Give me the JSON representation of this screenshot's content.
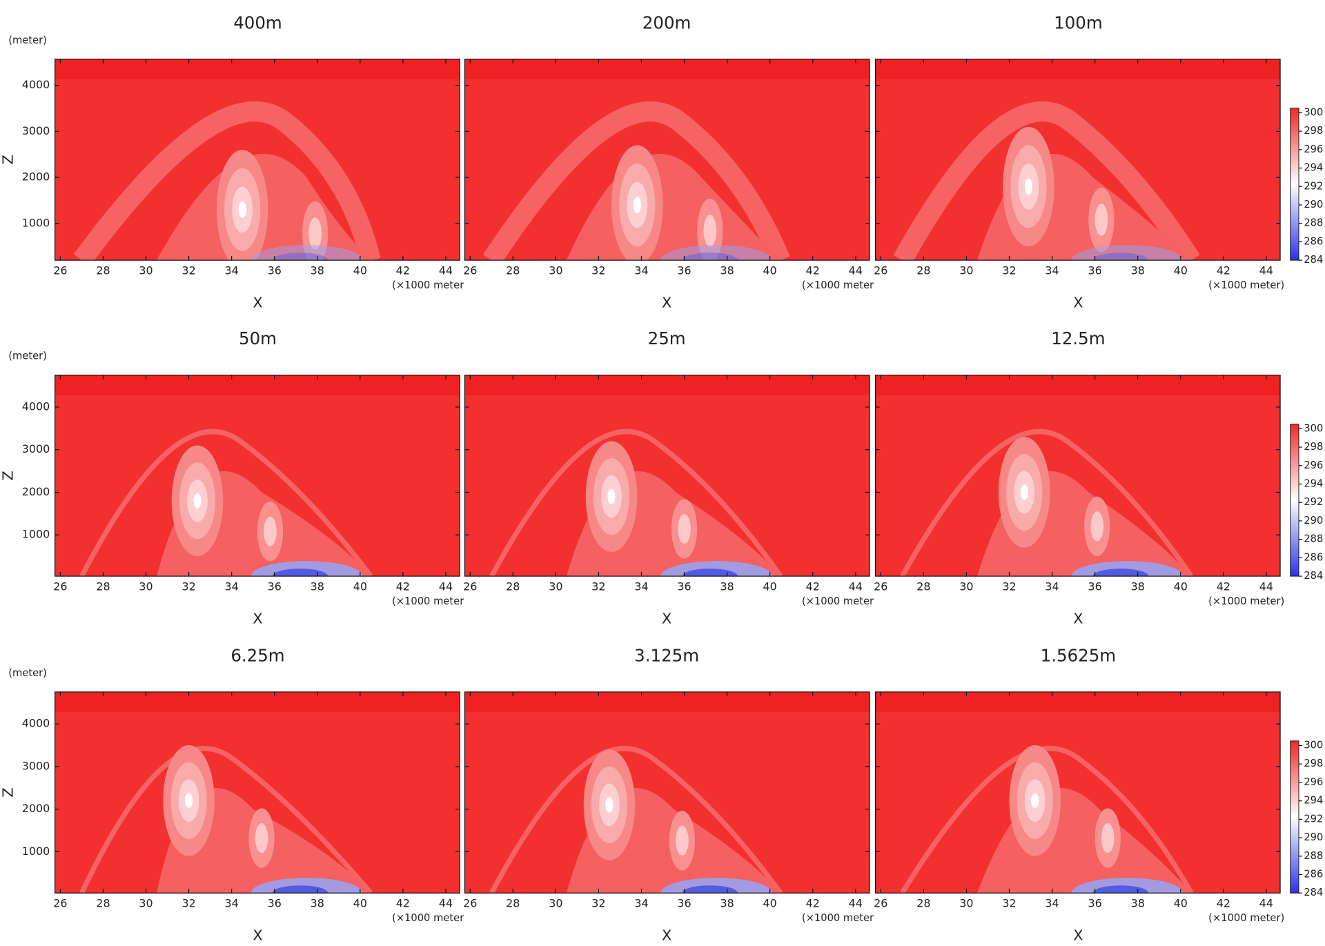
{
  "chart_data": [
    {
      "type": "contour",
      "title": "400m",
      "xlim": [
        25.75,
        44.65
      ],
      "ylim": [
        200,
        4570
      ],
      "xticks": [
        26,
        28,
        30,
        32,
        34,
        36,
        38,
        40,
        42,
        44
      ],
      "yticks": [
        1000,
        2000,
        3000,
        4000
      ],
      "xlabel": "X",
      "xunit": "(×1000 meter",
      "ylabel": "Z",
      "yunit": "(meter)"
    },
    {
      "type": "contour",
      "title": "200m",
      "xlim": [
        25.75,
        44.65
      ],
      "ylim": [
        200,
        4570
      ],
      "xticks": [
        26,
        28,
        30,
        32,
        34,
        36,
        38,
        40,
        42,
        44
      ],
      "yticks": [
        1000,
        2000,
        3000,
        4000
      ],
      "xlabel": "X",
      "xunit": "(×1000 meter"
    },
    {
      "type": "contour",
      "title": "100m",
      "xlim": [
        25.75,
        44.65
      ],
      "ylim": [
        200,
        4570
      ],
      "xticks": [
        26,
        28,
        30,
        32,
        34,
        36,
        38,
        40,
        42,
        44
      ],
      "yticks": [
        1000,
        2000,
        3000,
        4000
      ],
      "xlabel": "X",
      "xunit": "(×1000 meter)",
      "colorbar": {
        "lim": [
          284,
          300.5
        ],
        "ticks": [
          284,
          286,
          288,
          290,
          292,
          294,
          296,
          298,
          300
        ],
        "colors": [
          "#2a32e6",
          "#ffffff",
          "#f02828"
        ]
      }
    },
    {
      "type": "contour",
      "title": "50m",
      "xlim": [
        25.75,
        44.65
      ],
      "ylim": [
        30,
        4750
      ],
      "xticks": [
        26,
        28,
        30,
        32,
        34,
        36,
        38,
        40,
        42,
        44
      ],
      "yticks": [
        1000,
        2000,
        3000,
        4000
      ],
      "xlabel": "X",
      "xunit": "(×1000 meter",
      "ylabel": "Z",
      "yunit": "(meter)"
    },
    {
      "type": "contour",
      "title": "25m",
      "xlim": [
        25.75,
        44.65
      ],
      "ylim": [
        30,
        4750
      ],
      "xticks": [
        26,
        28,
        30,
        32,
        34,
        36,
        38,
        40,
        42,
        44
      ],
      "yticks": [
        1000,
        2000,
        3000,
        4000
      ],
      "xlabel": "X",
      "xunit": "(×1000 meter"
    },
    {
      "type": "contour",
      "title": "12.5m",
      "xlim": [
        25.75,
        44.65
      ],
      "ylim": [
        30,
        4750
      ],
      "xticks": [
        26,
        28,
        30,
        32,
        34,
        36,
        38,
        40,
        42,
        44
      ],
      "yticks": [
        1000,
        2000,
        3000,
        4000
      ],
      "xlabel": "X",
      "xunit": "(×1000 meter)",
      "colorbar": {
        "lim": [
          284,
          300.5
        ],
        "ticks": [
          284,
          286,
          288,
          290,
          292,
          294,
          296,
          298,
          300
        ],
        "colors": [
          "#2a32e6",
          "#ffffff",
          "#f02828"
        ]
      }
    },
    {
      "type": "contour",
      "title": "6.25m",
      "xlim": [
        25.75,
        44.65
      ],
      "ylim": [
        30,
        4750
      ],
      "xticks": [
        26,
        28,
        30,
        32,
        34,
        36,
        38,
        40,
        42,
        44
      ],
      "yticks": [
        1000,
        2000,
        3000,
        4000
      ],
      "xlabel": "X",
      "xunit": "(×1000 meter",
      "ylabel": "Z",
      "yunit": "(meter)"
    },
    {
      "type": "contour",
      "title": "3.125m",
      "xlim": [
        25.75,
        44.65
      ],
      "ylim": [
        30,
        4750
      ],
      "xticks": [
        26,
        28,
        30,
        32,
        34,
        36,
        38,
        40,
        42,
        44
      ],
      "yticks": [
        1000,
        2000,
        3000,
        4000
      ],
      "xlabel": "X",
      "xunit": "(×1000 meter"
    },
    {
      "type": "contour",
      "title": "1.5625m",
      "xlim": [
        25.75,
        44.65
      ],
      "ylim": [
        30,
        4750
      ],
      "xticks": [
        26,
        28,
        30,
        32,
        34,
        36,
        38,
        40,
        42,
        44
      ],
      "yticks": [
        1000,
        2000,
        3000,
        4000
      ],
      "xlabel": "X",
      "xunit": "(×1000 meter)",
      "colorbar": {
        "lim": [
          284,
          300.5
        ],
        "ticks": [
          284,
          286,
          288,
          290,
          292,
          294,
          296,
          298,
          300
        ],
        "colors": [
          "#2a32e6",
          "#ffffff",
          "#f02828"
        ]
      }
    }
  ]
}
